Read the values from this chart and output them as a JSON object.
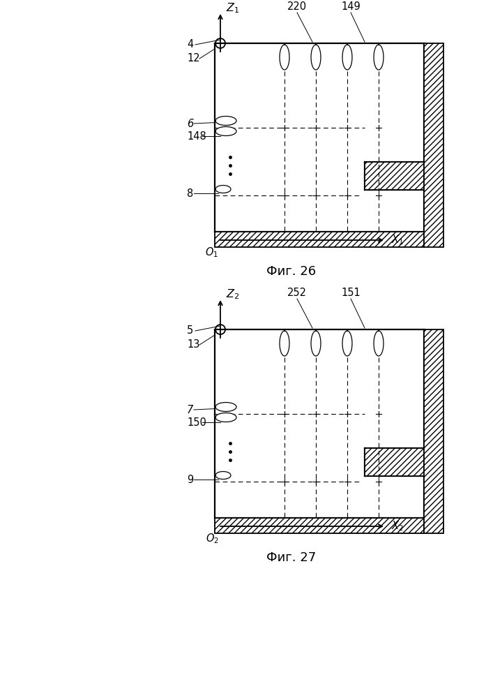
{
  "bg_color": "#ffffff",
  "line_color": "#000000",
  "fig1_caption": "Фиг. 26",
  "fig2_caption": "Фиг. 27",
  "font_size": 13
}
